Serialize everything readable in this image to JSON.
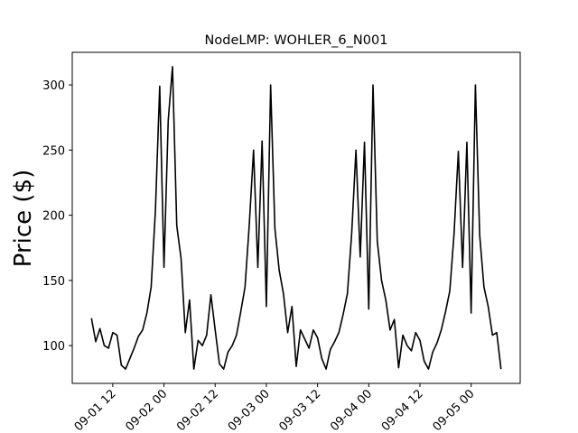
{
  "chart_data": {
    "type": "line",
    "title": "NodeLMP: WOHLER_6_N001",
    "y_label": "Price ($)",
    "x": [
      "09-01 07:00",
      "09-01 08:00",
      "09-01 09:00",
      "09-01 10:00",
      "09-01 11:00",
      "09-01 12:00",
      "09-01 13:00",
      "09-01 14:00",
      "09-01 15:00",
      "09-01 16:00",
      "09-01 17:00",
      "09-01 18:00",
      "09-01 19:00",
      "09-01 20:00",
      "09-01 21:00",
      "09-01 22:00",
      "09-01 23:00",
      "09-02 00:00",
      "09-02 01:00",
      "09-02 02:00",
      "09-02 03:00",
      "09-02 04:00",
      "09-02 05:00",
      "09-02 06:00",
      "09-02 07:00",
      "09-02 08:00",
      "09-02 09:00",
      "09-02 10:00",
      "09-02 11:00",
      "09-02 12:00",
      "09-02 13:00",
      "09-02 14:00",
      "09-02 15:00",
      "09-02 16:00",
      "09-02 17:00",
      "09-02 18:00",
      "09-02 19:00",
      "09-02 20:00",
      "09-02 21:00",
      "09-02 22:00",
      "09-02 23:00",
      "09-03 00:00",
      "09-03 01:00",
      "09-03 02:00",
      "09-03 03:00",
      "09-03 04:00",
      "09-03 05:00",
      "09-03 06:00",
      "09-03 07:00",
      "09-03 08:00",
      "09-03 09:00",
      "09-03 10:00",
      "09-03 11:00",
      "09-03 12:00",
      "09-03 13:00",
      "09-03 14:00",
      "09-03 15:00",
      "09-03 16:00",
      "09-03 17:00",
      "09-03 18:00",
      "09-03 19:00",
      "09-03 20:00",
      "09-03 21:00",
      "09-03 22:00",
      "09-03 23:00",
      "09-04 00:00",
      "09-04 01:00",
      "09-04 02:00",
      "09-04 03:00",
      "09-04 04:00",
      "09-04 05:00",
      "09-04 06:00",
      "09-04 07:00",
      "09-04 08:00",
      "09-04 09:00",
      "09-04 10:00",
      "09-04 11:00",
      "09-04 12:00",
      "09-04 13:00",
      "09-04 14:00",
      "09-04 15:00",
      "09-04 16:00",
      "09-04 17:00",
      "09-04 18:00",
      "09-04 19:00",
      "09-04 20:00",
      "09-04 21:00",
      "09-04 22:00",
      "09-04 23:00",
      "09-05 00:00",
      "09-05 01:00",
      "09-05 02:00",
      "09-05 03:00",
      "09-05 04:00",
      "09-05 05:00",
      "09-05 06:00",
      "09-05 07:00"
    ],
    "series": [
      {
        "name": "NodeLMP",
        "color": "#000000",
        "values": [
          121,
          103,
          113,
          100,
          98,
          110,
          108,
          85,
          82,
          90,
          98,
          107,
          112,
          125,
          145,
          204,
          299,
          160,
          273,
          314,
          192,
          167,
          110,
          135,
          82,
          104,
          100,
          108,
          139,
          112,
          86,
          82,
          95,
          100,
          108,
          126,
          145,
          193,
          250,
          160,
          257,
          130,
          300,
          190,
          158,
          140,
          110,
          130,
          84,
          112,
          105,
          98,
          112,
          106,
          90,
          82,
          97,
          103,
          110,
          124,
          140,
          186,
          250,
          168,
          256,
          128,
          300,
          180,
          150,
          135,
          112,
          120,
          83,
          108,
          100,
          96,
          110,
          104,
          88,
          82,
          95,
          102,
          112,
          126,
          142,
          186,
          249,
          160,
          256,
          125,
          300,
          185,
          145,
          130,
          108,
          110,
          82
        ]
      }
    ],
    "xlim": [
      "09-01 02:30",
      "09-05 11:30"
    ],
    "xticks": [
      {
        "value": "09-01 12:00",
        "label": "09-01 12"
      },
      {
        "value": "09-02 00:00",
        "label": "09-02 00"
      },
      {
        "value": "09-02 12:00",
        "label": "09-02 12"
      },
      {
        "value": "09-03 00:00",
        "label": "09-03 00"
      },
      {
        "value": "09-03 12:00",
        "label": "09-03 12"
      },
      {
        "value": "09-04 00:00",
        "label": "09-04 00"
      },
      {
        "value": "09-04 12:00",
        "label": "09-04 12"
      },
      {
        "value": "09-05 00:00",
        "label": "09-05 00"
      }
    ],
    "ylim": [
      71,
      325
    ],
    "yticks": [
      100,
      150,
      200,
      250,
      300
    ],
    "grid": false
  }
}
